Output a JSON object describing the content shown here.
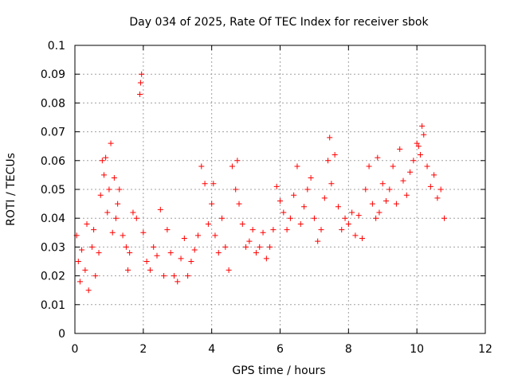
{
  "chart_data": {
    "type": "scatter",
    "title": "Day 034 of 2025, Rate Of TEC Index for receiver sbok",
    "xlabel": "GPS time / hours",
    "ylabel": "ROTI / TECUs",
    "xlim": [
      0,
      12
    ],
    "ylim": [
      0,
      0.1
    ],
    "x_ticks": [
      "0",
      "2",
      "4",
      "6",
      "8",
      "10",
      "12"
    ],
    "y_ticks": [
      "0",
      "0.01",
      "0.02",
      "0.03",
      "0.04",
      "0.05",
      "0.06",
      "0.07",
      "0.08",
      "0.09",
      "0.1"
    ],
    "grid": true,
    "marker": "+",
    "color": "#ff0000",
    "series": [
      {
        "x": [
          0.05,
          0.1,
          0.15,
          0.2,
          0.3,
          0.35,
          0.4,
          0.5,
          0.55,
          0.6,
          0.7,
          0.75,
          0.8,
          0.85,
          0.9,
          0.95,
          1.0,
          1.05,
          1.1,
          1.15,
          1.2,
          1.25,
          1.3,
          1.4,
          1.5,
          1.55,
          1.6,
          1.7,
          1.8,
          1.9,
          1.92,
          1.95,
          2.0,
          2.1,
          2.2,
          2.3,
          2.4,
          2.5,
          2.6,
          2.7,
          2.8,
          2.9,
          3.0,
          3.1,
          3.2,
          3.3,
          3.4,
          3.5,
          3.6,
          3.7,
          3.8,
          3.9,
          4.0,
          4.05,
          4.1,
          4.2,
          4.3,
          4.4,
          4.5,
          4.6,
          4.7,
          4.75,
          4.8,
          4.9,
          5.0,
          5.1,
          5.2,
          5.3,
          5.4,
          5.5,
          5.6,
          5.7,
          5.8,
          5.9,
          6.0,
          6.1,
          6.2,
          6.3,
          6.4,
          6.5,
          6.6,
          6.7,
          6.8,
          6.9,
          7.0,
          7.1,
          7.2,
          7.3,
          7.4,
          7.45,
          7.5,
          7.6,
          7.7,
          7.8,
          7.9,
          8.0,
          8.1,
          8.2,
          8.3,
          8.4,
          8.5,
          8.6,
          8.7,
          8.8,
          8.85,
          8.9,
          9.0,
          9.1,
          9.2,
          9.3,
          9.4,
          9.5,
          9.6,
          9.7,
          9.8,
          9.9,
          10.0,
          10.05,
          10.1,
          10.15,
          10.2,
          10.3,
          10.4,
          10.5,
          10.6,
          10.7,
          10.8
        ],
        "y": [
          0.034,
          0.025,
          0.018,
          0.029,
          0.022,
          0.038,
          0.015,
          0.03,
          0.036,
          0.02,
          0.028,
          0.048,
          0.06,
          0.055,
          0.061,
          0.042,
          0.05,
          0.066,
          0.035,
          0.054,
          0.04,
          0.045,
          0.05,
          0.034,
          0.03,
          0.022,
          0.028,
          0.042,
          0.04,
          0.083,
          0.087,
          0.09,
          0.035,
          0.025,
          0.022,
          0.03,
          0.027,
          0.043,
          0.02,
          0.036,
          0.028,
          0.02,
          0.018,
          0.026,
          0.033,
          0.02,
          0.025,
          0.029,
          0.034,
          0.058,
          0.052,
          0.038,
          0.045,
          0.052,
          0.034,
          0.028,
          0.04,
          0.03,
          0.022,
          0.058,
          0.05,
          0.06,
          0.045,
          0.038,
          0.03,
          0.032,
          0.036,
          0.028,
          0.03,
          0.035,
          0.026,
          0.03,
          0.036,
          0.051,
          0.046,
          0.042,
          0.036,
          0.04,
          0.048,
          0.058,
          0.038,
          0.044,
          0.05,
          0.054,
          0.04,
          0.032,
          0.036,
          0.047,
          0.06,
          0.068,
          0.052,
          0.062,
          0.044,
          0.036,
          0.04,
          0.038,
          0.042,
          0.034,
          0.041,
          0.033,
          0.05,
          0.058,
          0.045,
          0.04,
          0.061,
          0.042,
          0.052,
          0.046,
          0.05,
          0.058,
          0.045,
          0.064,
          0.053,
          0.048,
          0.056,
          0.06,
          0.066,
          0.065,
          0.062,
          0.072,
          0.069,
          0.058,
          0.051,
          0.055,
          0.047,
          0.05,
          0.04
        ]
      }
    ]
  }
}
